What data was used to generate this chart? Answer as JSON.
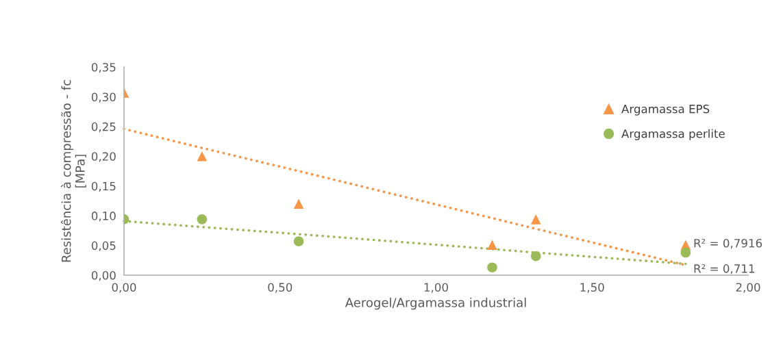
{
  "chart_data": {
    "type": "scatter",
    "xlabel": "Aerogel/Argamassa industrial",
    "ylabel": "Resistência à compressão - fc\n[MPa]",
    "xlim": [
      0,
      2
    ],
    "xticks": [
      {
        "value": 0,
        "label": "0,00"
      },
      {
        "value": 0.5,
        "label": "0,50"
      },
      {
        "value": 1,
        "label": "1,00"
      },
      {
        "value": 1.5,
        "label": "1,50"
      },
      {
        "value": 2,
        "label": "2,00"
      }
    ],
    "ylim": [
      0,
      0.35
    ],
    "yticks": [
      {
        "value": 0,
        "label": "0,00"
      },
      {
        "value": 0.05,
        "label": "0,05"
      },
      {
        "value": 0.1,
        "label": "0,10"
      },
      {
        "value": 0.15,
        "label": "0,15"
      },
      {
        "value": 0.2,
        "label": "0,20"
      },
      {
        "value": 0.25,
        "label": "0,25"
      },
      {
        "value": 0.3,
        "label": "0,30"
      },
      {
        "value": 0.35,
        "label": "0,35"
      }
    ],
    "grid": false,
    "legend": "top right",
    "x": [
      0,
      0.25,
      0.56,
      1.18,
      1.32,
      1.8
    ],
    "series": [
      {
        "name": "Argamassa EPS",
        "color": "#f79646",
        "marker": "triangle",
        "values": [
          0.307,
          0.2,
          0.12,
          0.051,
          0.094,
          0.051
        ]
      },
      {
        "name": "Argamassa perlite",
        "color": "#9bbb59",
        "marker": "circle",
        "values": [
          0.094,
          0.094,
          0.057,
          0.013,
          0.032,
          0.038
        ]
      },
      {
        "type": "line",
        "color": "#f79646",
        "line_style": "dotted",
        "marker": "none",
        "values": [
          0.246,
          0.214,
          0.175,
          0.096,
          0.078,
          0.017
        ]
      },
      {
        "type": "line",
        "color": "#9bbb59",
        "line_style": "dotted",
        "marker": "none",
        "values": [
          0.091,
          0.081,
          0.069,
          0.044,
          0.038,
          0.019
        ]
      }
    ],
    "annotations": [
      {
        "text": "R² = 0,7916",
        "x": 1.8,
        "y": 0.017
      },
      {
        "text": "R² = 0,711",
        "x": 1.8,
        "y": 0.019
      }
    ]
  }
}
